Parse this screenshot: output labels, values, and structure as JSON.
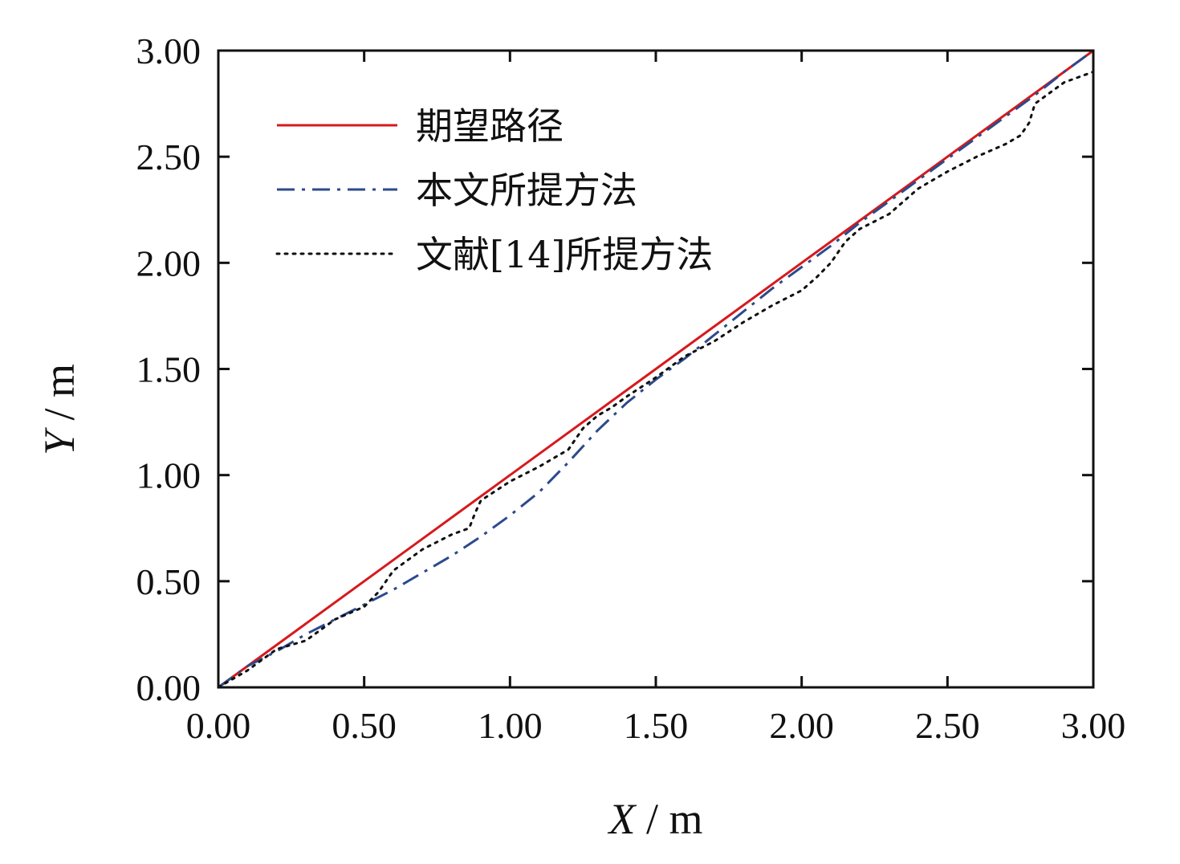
{
  "chart_data": {
    "type": "line",
    "title": "",
    "xlabel": {
      "var": "X",
      "unit": " / m"
    },
    "ylabel": {
      "var": "Y",
      "unit": " / m"
    },
    "xlim": [
      0,
      3
    ],
    "ylim": [
      0,
      3
    ],
    "xticks": [
      "0.00",
      "0.50",
      "1.00",
      "1.50",
      "2.00",
      "2.50",
      "3.00"
    ],
    "yticks": [
      "0.00",
      "0.50",
      "1.00",
      "1.50",
      "2.00",
      "2.50",
      "3.00"
    ],
    "grid": false,
    "legend_position": "top-left",
    "series": [
      {
        "name": "期望路径",
        "color": "#d7191c",
        "style": "solid",
        "x": [
          0,
          0.5,
          1.0,
          1.5,
          2.0,
          2.5,
          3.0
        ],
        "y": [
          0,
          0.5,
          1.0,
          1.5,
          2.0,
          2.5,
          3.0
        ]
      },
      {
        "name": "本文所提方法",
        "color": "#2c4a8c",
        "style": "dashdot",
        "x": [
          0,
          0.1,
          0.2,
          0.3,
          0.4,
          0.5,
          0.6,
          0.7,
          0.8,
          0.9,
          1.0,
          1.1,
          1.2,
          1.3,
          1.4,
          1.5,
          1.6,
          1.7,
          1.8,
          1.9,
          2.0,
          2.1,
          2.2,
          2.3,
          2.4,
          2.5,
          2.6,
          2.7,
          2.8,
          2.9,
          3.0
        ],
        "y": [
          0,
          0.1,
          0.17,
          0.25,
          0.32,
          0.39,
          0.46,
          0.54,
          0.62,
          0.71,
          0.81,
          0.92,
          1.06,
          1.21,
          1.34,
          1.45,
          1.55,
          1.66,
          1.77,
          1.88,
          1.98,
          2.08,
          2.19,
          2.29,
          2.39,
          2.49,
          2.59,
          2.69,
          2.79,
          2.9,
          3.0
        ]
      },
      {
        "name": "文献[14]所提方法",
        "color": "#111111",
        "style": "dotted",
        "x": [
          0,
          0.1,
          0.2,
          0.3,
          0.4,
          0.5,
          0.55,
          0.6,
          0.7,
          0.8,
          0.86,
          0.88,
          0.9,
          1.0,
          1.1,
          1.2,
          1.25,
          1.3,
          1.35,
          1.4,
          1.5,
          1.6,
          1.7,
          1.8,
          1.9,
          2.0,
          2.05,
          2.1,
          2.15,
          2.2,
          2.3,
          2.4,
          2.5,
          2.6,
          2.7,
          2.75,
          2.78,
          2.8,
          2.9,
          3.0
        ],
        "y": [
          0,
          0.08,
          0.18,
          0.22,
          0.32,
          0.38,
          0.45,
          0.55,
          0.65,
          0.72,
          0.75,
          0.82,
          0.88,
          0.97,
          1.04,
          1.12,
          1.22,
          1.28,
          1.32,
          1.37,
          1.46,
          1.56,
          1.63,
          1.72,
          1.8,
          1.87,
          1.93,
          2.0,
          2.1,
          2.16,
          2.23,
          2.35,
          2.43,
          2.5,
          2.56,
          2.6,
          2.66,
          2.75,
          2.85,
          2.9
        ]
      }
    ]
  }
}
